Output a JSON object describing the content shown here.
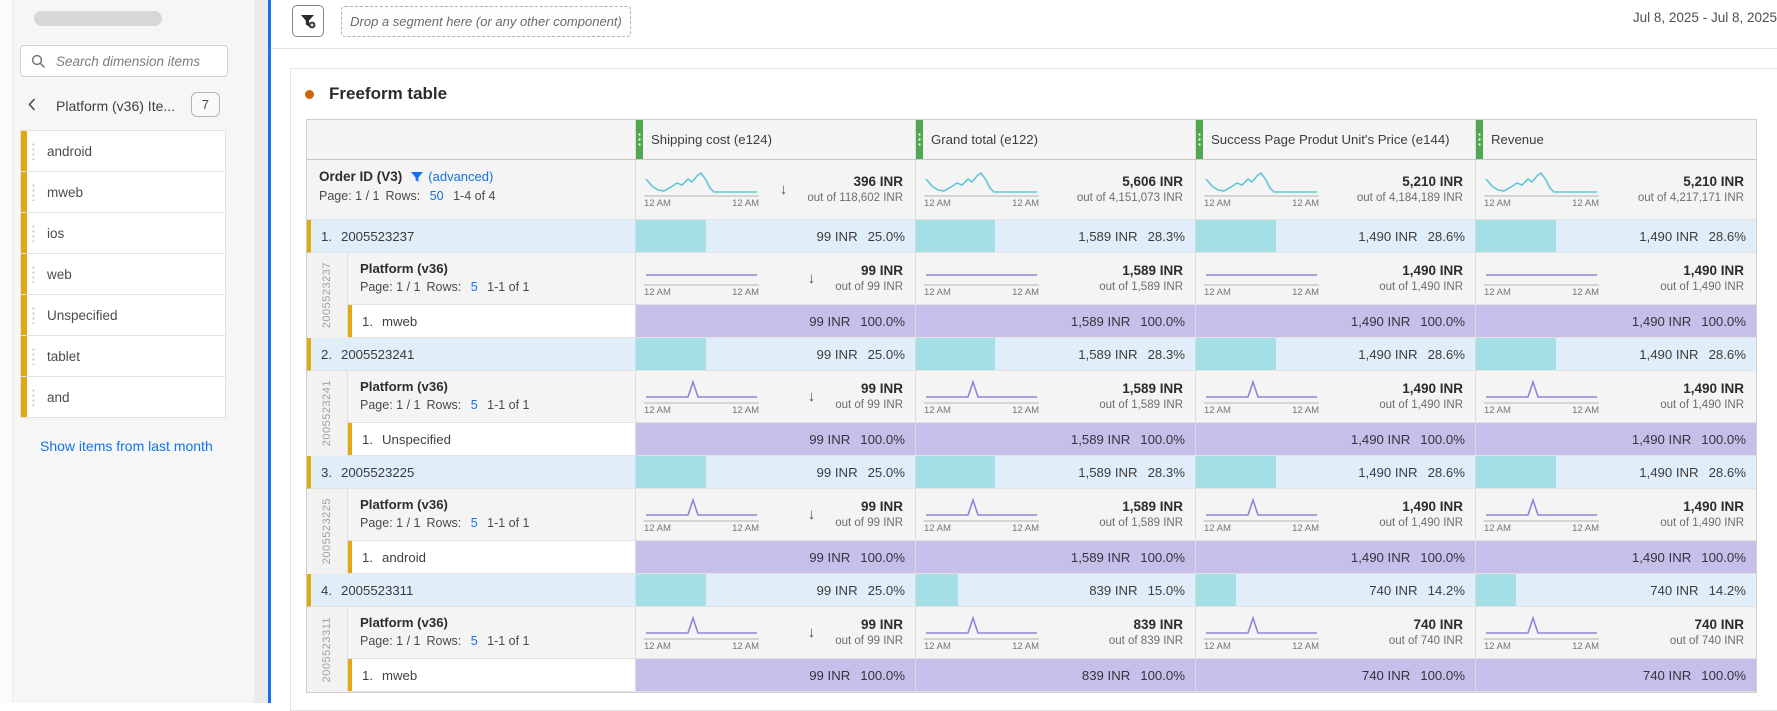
{
  "sidebar": {
    "search_placeholder": "Search dimension items",
    "panel_title": "Platform (v36) Ite...",
    "count_badge": "7",
    "items": [
      "android",
      "mweb",
      "ios",
      "web",
      "Unspecified",
      "tablet",
      "and"
    ],
    "footer_link": "Show items from last month"
  },
  "topbar": {
    "dropzone_text": "Drop a segment here (or any other component)",
    "date_range": "Jul 8, 2025 - Jul 8, 2025"
  },
  "panel": {
    "title": "Freeform table"
  },
  "table": {
    "columns": [
      {
        "label": "Shipping cost (e124)"
      },
      {
        "label": "Grand total (e122)"
      },
      {
        "label": "Success Page Produt Unit's Price (e144)"
      },
      {
        "label": "Revenue"
      }
    ],
    "time_labels": {
      "start": "12 AM",
      "end": "12 AM"
    },
    "dimension": {
      "name": "Order ID (V3)",
      "advanced_label": "(advanced)",
      "page_text": "Page: 1 / 1",
      "rows_label": "Rows:",
      "rows_value": "50",
      "range_text": "1-4 of 4"
    },
    "summary": {
      "spark": "wiggle",
      "cells": [
        {
          "value": "396 INR",
          "out_of": "out of 118,602 INR",
          "sorted": true
        },
        {
          "value": "5,606 INR",
          "out_of": "out of 4,151,073 INR"
        },
        {
          "value": "5,210 INR",
          "out_of": "out of 4,184,189 INR"
        },
        {
          "value": "5,210 INR",
          "out_of": "out of 4,217,171 INR"
        }
      ]
    },
    "orders": [
      {
        "index": "1.",
        "id": "2005523237",
        "cells": [
          {
            "value": "99 INR",
            "pct": "25.0%",
            "bar": 25
          },
          {
            "value": "1,589 INR",
            "pct": "28.3%",
            "bar": 28.3
          },
          {
            "value": "1,490 INR",
            "pct": "28.6%",
            "bar": 28.6
          },
          {
            "value": "1,490 INR",
            "pct": "28.6%",
            "bar": 28.6
          }
        ],
        "breakdown": {
          "dimension": "Platform (v36)",
          "page_text": "Page: 1 / 1",
          "rows_label": "Rows:",
          "rows_value": "5",
          "range_text": "1-1 of 1",
          "spark": "flat",
          "totals": [
            {
              "value": "99 INR",
              "out_of": "out of 99 INR",
              "sorted": true
            },
            {
              "value": "1,589 INR",
              "out_of": "out of 1,589 INR"
            },
            {
              "value": "1,490 INR",
              "out_of": "out of 1,490 INR"
            },
            {
              "value": "1,490 INR",
              "out_of": "out of 1,490 INR"
            }
          ],
          "items": [
            {
              "index": "1.",
              "name": "mweb",
              "cells": [
                {
                  "value": "99 INR",
                  "pct": "100.0%"
                },
                {
                  "value": "1,589 INR",
                  "pct": "100.0%"
                },
                {
                  "value": "1,490 INR",
                  "pct": "100.0%"
                },
                {
                  "value": "1,490 INR",
                  "pct": "100.0%"
                }
              ]
            }
          ]
        }
      },
      {
        "index": "2.",
        "id": "2005523241",
        "cells": [
          {
            "value": "99 INR",
            "pct": "25.0%",
            "bar": 25
          },
          {
            "value": "1,589 INR",
            "pct": "28.3%",
            "bar": 28.3
          },
          {
            "value": "1,490 INR",
            "pct": "28.6%",
            "bar": 28.6
          },
          {
            "value": "1,490 INR",
            "pct": "28.6%",
            "bar": 28.6
          }
        ],
        "breakdown": {
          "dimension": "Platform (v36)",
          "page_text": "Page: 1 / 1",
          "rows_label": "Rows:",
          "rows_value": "5",
          "range_text": "1-1 of 1",
          "spark": "spike",
          "totals": [
            {
              "value": "99 INR",
              "out_of": "out of 99 INR",
              "sorted": true
            },
            {
              "value": "1,589 INR",
              "out_of": "out of 1,589 INR"
            },
            {
              "value": "1,490 INR",
              "out_of": "out of 1,490 INR"
            },
            {
              "value": "1,490 INR",
              "out_of": "out of 1,490 INR"
            }
          ],
          "items": [
            {
              "index": "1.",
              "name": "Unspecified",
              "cells": [
                {
                  "value": "99 INR",
                  "pct": "100.0%"
                },
                {
                  "value": "1,589 INR",
                  "pct": "100.0%"
                },
                {
                  "value": "1,490 INR",
                  "pct": "100.0%"
                },
                {
                  "value": "1,490 INR",
                  "pct": "100.0%"
                }
              ]
            }
          ]
        }
      },
      {
        "index": "3.",
        "id": "2005523225",
        "cells": [
          {
            "value": "99 INR",
            "pct": "25.0%",
            "bar": 25
          },
          {
            "value": "1,589 INR",
            "pct": "28.3%",
            "bar": 28.3
          },
          {
            "value": "1,490 INR",
            "pct": "28.6%",
            "bar": 28.6
          },
          {
            "value": "1,490 INR",
            "pct": "28.6%",
            "bar": 28.6
          }
        ],
        "breakdown": {
          "dimension": "Platform (v36)",
          "page_text": "Page: 1 / 1",
          "rows_label": "Rows:",
          "rows_value": "5",
          "range_text": "1-1 of 1",
          "spark": "spike",
          "totals": [
            {
              "value": "99 INR",
              "out_of": "out of 99 INR",
              "sorted": true
            },
            {
              "value": "1,589 INR",
              "out_of": "out of 1,589 INR"
            },
            {
              "value": "1,490 INR",
              "out_of": "out of 1,490 INR"
            },
            {
              "value": "1,490 INR",
              "out_of": "out of 1,490 INR"
            }
          ],
          "items": [
            {
              "index": "1.",
              "name": "android",
              "cells": [
                {
                  "value": "99 INR",
                  "pct": "100.0%"
                },
                {
                  "value": "1,589 INR",
                  "pct": "100.0%"
                },
                {
                  "value": "1,490 INR",
                  "pct": "100.0%"
                },
                {
                  "value": "1,490 INR",
                  "pct": "100.0%"
                }
              ]
            }
          ]
        }
      },
      {
        "index": "4.",
        "id": "2005523311",
        "cells": [
          {
            "value": "99 INR",
            "pct": "25.0%",
            "bar": 25
          },
          {
            "value": "839 INR",
            "pct": "15.0%",
            "bar": 15
          },
          {
            "value": "740 INR",
            "pct": "14.2%",
            "bar": 14.2
          },
          {
            "value": "740 INR",
            "pct": "14.2%",
            "bar": 14.2
          }
        ],
        "breakdown": {
          "dimension": "Platform (v36)",
          "page_text": "Page: 1 / 1",
          "rows_label": "Rows:",
          "rows_value": "5",
          "range_text": "1-1 of 1",
          "spark": "spike",
          "totals": [
            {
              "value": "99 INR",
              "out_of": "out of 99 INR",
              "sorted": true
            },
            {
              "value": "839 INR",
              "out_of": "out of 839 INR"
            },
            {
              "value": "740 INR",
              "out_of": "out of 740 INR"
            },
            {
              "value": "740 INR",
              "out_of": "out of 740 INR"
            }
          ],
          "items": [
            {
              "index": "1.",
              "name": "mweb",
              "cells": [
                {
                  "value": "99 INR",
                  "pct": "100.0%"
                },
                {
                  "value": "839 INR",
                  "pct": "100.0%"
                },
                {
                  "value": "740 INR",
                  "pct": "100.0%"
                },
                {
                  "value": "740 INR",
                  "pct": "100.0%"
                }
              ]
            }
          ]
        }
      }
    ]
  },
  "colors": {
    "accent_blue": "#1473e6",
    "item_yellow": "#e0a912",
    "column_green": "#4fa74f",
    "spark_cyan": "#5fc9d8",
    "spark_purple": "#8f83d8",
    "bar_teal": "#a3dfe5",
    "row_lightblue": "#e0eefa",
    "row_purple": "#c7beea",
    "title_dot_orange": "#cb660d"
  }
}
